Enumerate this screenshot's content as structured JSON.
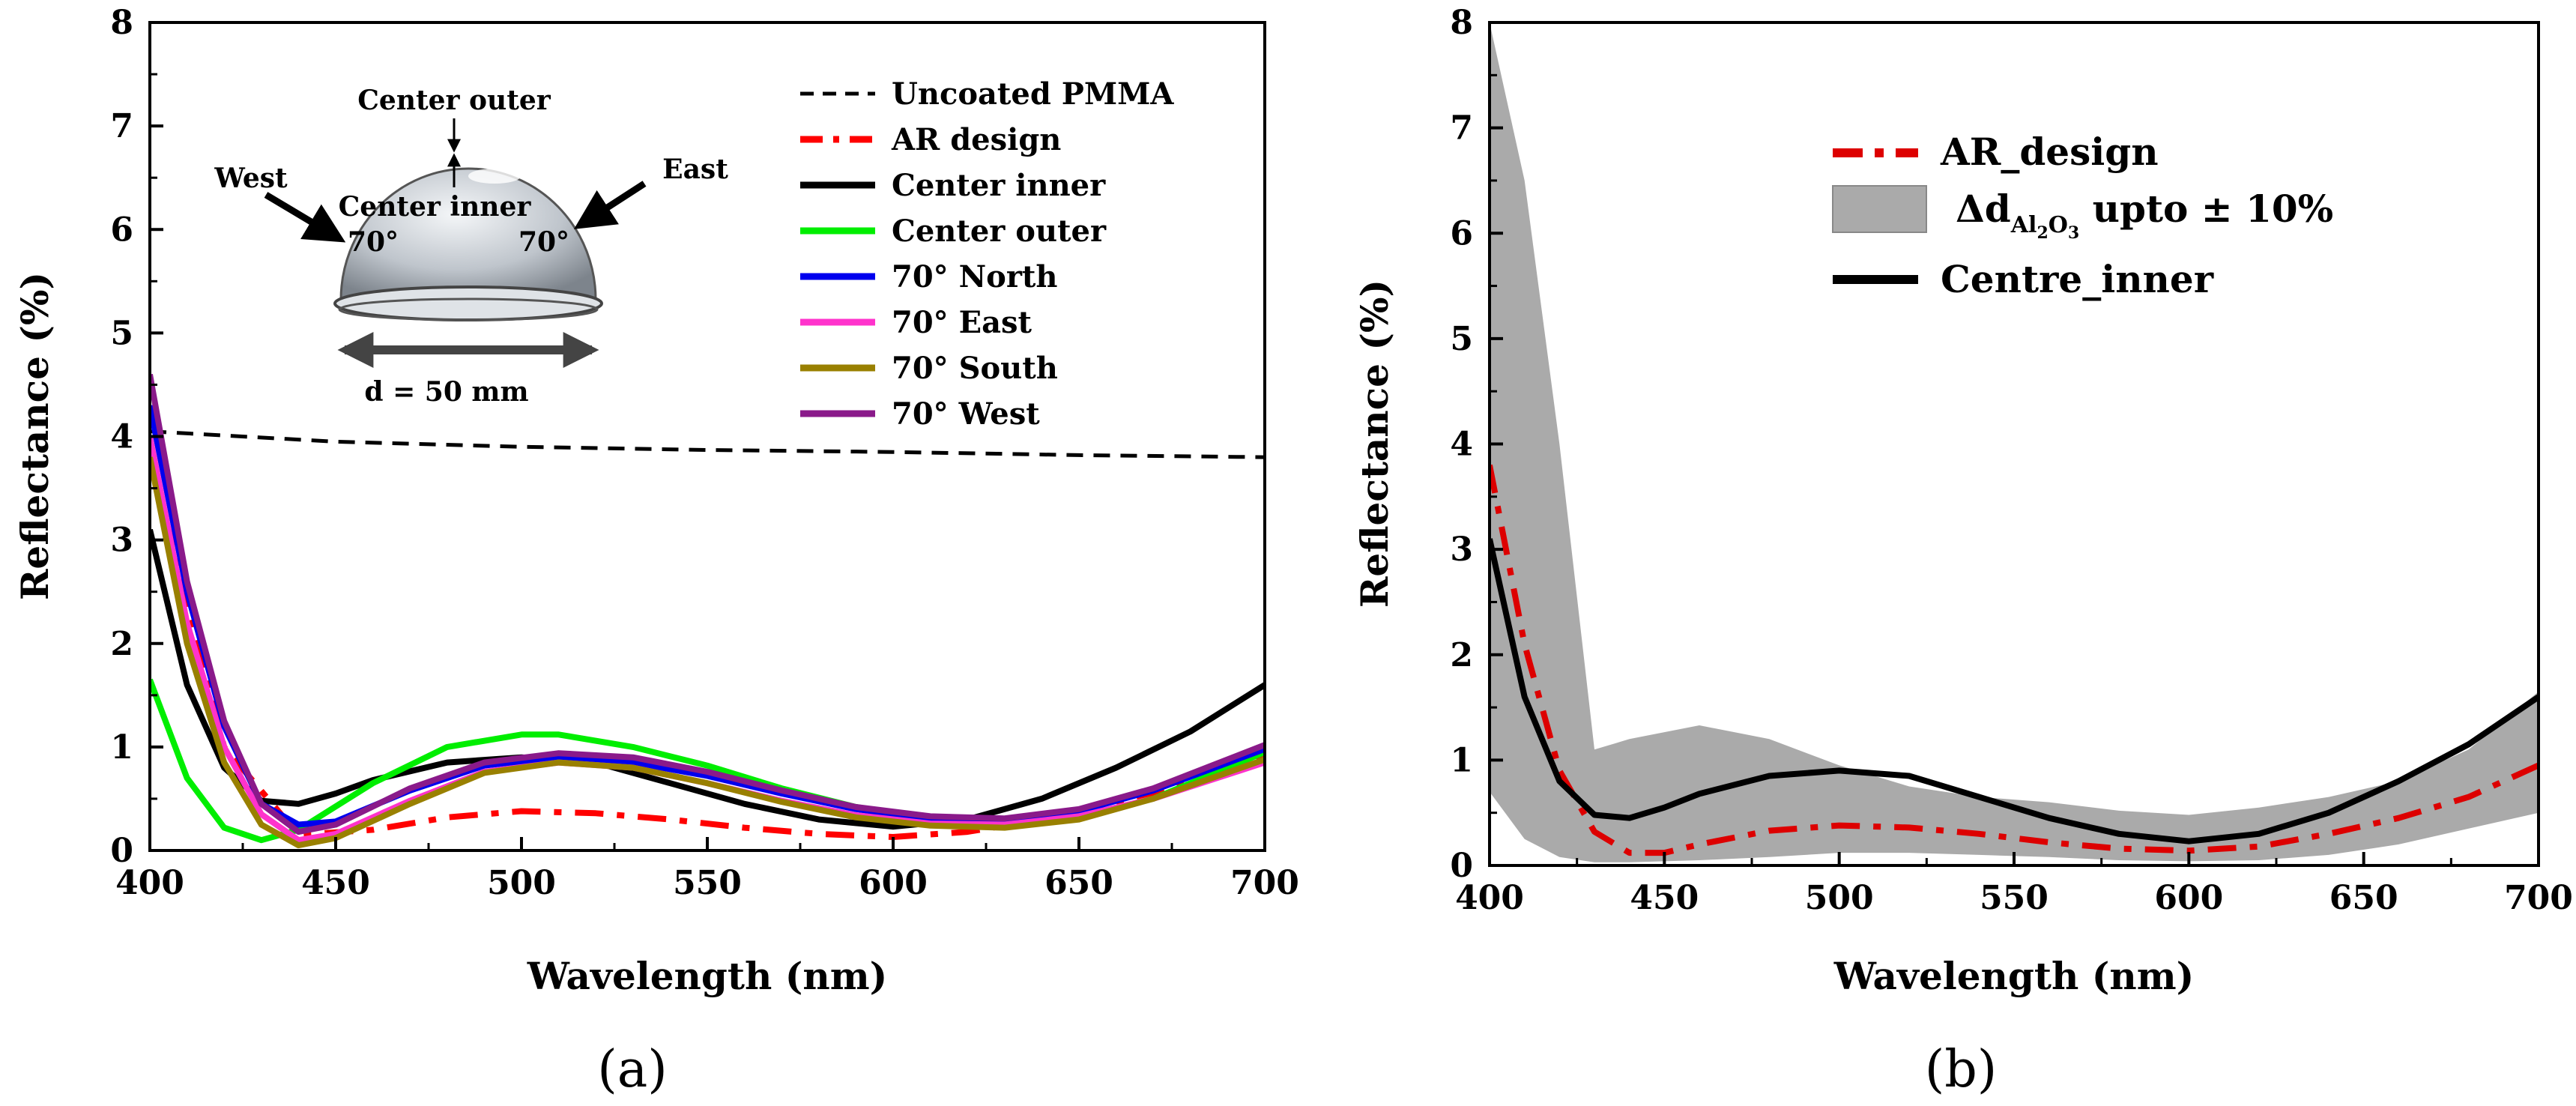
{
  "chart_data": [
    {
      "type": "line",
      "panel_label": "(a)",
      "xlabel": "Wavelength (nm)",
      "ylabel": "Reflectance (%)",
      "xlim": [
        400,
        700
      ],
      "ylim": [
        0,
        8
      ],
      "xticks": [
        "400",
        "450",
        "500",
        "550",
        "600",
        "650",
        "700"
      ],
      "yticks": [
        "0",
        "1",
        "2",
        "3",
        "4",
        "5",
        "6",
        "7",
        "8"
      ],
      "legend_position": "top-right",
      "series": [
        {
          "name": "Uncoated PMMA",
          "color": "#000000",
          "style": "dashed",
          "x": [
            400,
            450,
            500,
            550,
            600,
            650,
            700
          ],
          "y": [
            4.05,
            3.95,
            3.9,
            3.87,
            3.85,
            3.82,
            3.8
          ]
        },
        {
          "name": "AR design",
          "color": "#ff0000",
          "style": "dashdot",
          "x": [
            400,
            420,
            440,
            460,
            480,
            500,
            520,
            540,
            560,
            580,
            600,
            620,
            640,
            660,
            680,
            700
          ],
          "y": [
            3.8,
            1.0,
            0.15,
            0.2,
            0.32,
            0.38,
            0.36,
            0.3,
            0.22,
            0.16,
            0.13,
            0.18,
            0.3,
            0.45,
            0.65,
            0.9
          ]
        },
        {
          "name": "Center inner",
          "color": "#000000",
          "style": "solid",
          "x": [
            400,
            410,
            420,
            430,
            440,
            450,
            460,
            480,
            500,
            520,
            540,
            560,
            580,
            600,
            620,
            640,
            660,
            680,
            700
          ],
          "y": [
            3.1,
            1.6,
            0.8,
            0.48,
            0.45,
            0.55,
            0.68,
            0.85,
            0.9,
            0.85,
            0.65,
            0.45,
            0.3,
            0.23,
            0.3,
            0.5,
            0.8,
            1.15,
            1.6
          ]
        },
        {
          "name": "Center outer",
          "color": "#00ee00",
          "style": "solid",
          "x": [
            400,
            410,
            420,
            430,
            440,
            460,
            480,
            500,
            510,
            530,
            550,
            570,
            590,
            610,
            630,
            650,
            670,
            700
          ],
          "y": [
            1.65,
            0.7,
            0.22,
            0.1,
            0.2,
            0.65,
            1.0,
            1.12,
            1.12,
            1.0,
            0.82,
            0.6,
            0.42,
            0.3,
            0.25,
            0.32,
            0.5,
            0.95
          ]
        },
        {
          "name": "70° North",
          "color": "#0000ee",
          "style": "solid",
          "x": [
            400,
            410,
            420,
            430,
            440,
            450,
            470,
            490,
            510,
            530,
            550,
            570,
            590,
            610,
            630,
            650,
            670,
            700
          ],
          "y": [
            4.3,
            2.5,
            1.2,
            0.45,
            0.25,
            0.28,
            0.58,
            0.82,
            0.9,
            0.85,
            0.72,
            0.55,
            0.4,
            0.3,
            0.28,
            0.38,
            0.58,
            0.98
          ]
        },
        {
          "name": "70° East",
          "color": "#ff33cc",
          "style": "solid",
          "x": [
            400,
            410,
            420,
            430,
            440,
            450,
            470,
            490,
            510,
            530,
            550,
            570,
            590,
            610,
            630,
            650,
            670,
            700
          ],
          "y": [
            4.0,
            2.2,
            1.0,
            0.35,
            0.1,
            0.16,
            0.48,
            0.76,
            0.85,
            0.8,
            0.65,
            0.48,
            0.34,
            0.26,
            0.25,
            0.33,
            0.5,
            0.85
          ]
        },
        {
          "name": "70° South",
          "color": "#998000",
          "style": "solid",
          "x": [
            400,
            410,
            420,
            430,
            440,
            450,
            470,
            490,
            510,
            530,
            550,
            570,
            590,
            610,
            630,
            650,
            670,
            700
          ],
          "y": [
            3.8,
            2.0,
            0.85,
            0.25,
            0.05,
            0.12,
            0.45,
            0.75,
            0.85,
            0.8,
            0.65,
            0.47,
            0.32,
            0.24,
            0.22,
            0.3,
            0.5,
            0.88
          ]
        },
        {
          "name": "70° West",
          "color": "#8a1a8a",
          "style": "solid",
          "x": [
            400,
            410,
            420,
            430,
            440,
            450,
            470,
            490,
            510,
            530,
            550,
            570,
            590,
            610,
            630,
            650,
            670,
            700
          ],
          "y": [
            4.6,
            2.6,
            1.25,
            0.45,
            0.18,
            0.25,
            0.6,
            0.85,
            0.94,
            0.9,
            0.76,
            0.58,
            0.42,
            0.33,
            0.31,
            0.4,
            0.6,
            1.02
          ]
        }
      ],
      "inset": {
        "labels": {
          "center_outer": "Center outer",
          "center_inner": "Center inner",
          "west": "West",
          "east": "East",
          "angle_left": "70°",
          "angle_right": "70°",
          "diameter": "d = 50 mm"
        }
      }
    },
    {
      "type": "line",
      "panel_label": "(b)",
      "xlabel": "Wavelength (nm)",
      "ylabel": "Reflectance (%)",
      "xlim": [
        400,
        700
      ],
      "ylim": [
        0,
        8
      ],
      "xticks": [
        "400",
        "450",
        "500",
        "550",
        "600",
        "650",
        "700"
      ],
      "yticks": [
        "0",
        "1",
        "2",
        "3",
        "4",
        "5",
        "6",
        "7",
        "8"
      ],
      "legend_position": "top-center",
      "band": {
        "label_prefix": "Δd",
        "label_sub": "Al",
        "label_sub2": "2",
        "label_sub3": "O",
        "label_sub4": "3",
        "label_suffix": " upto ± 10%",
        "color": "#aaaaaa",
        "x": [
          400,
          410,
          420,
          430,
          440,
          460,
          480,
          500,
          520,
          540,
          560,
          580,
          600,
          620,
          640,
          660,
          680,
          700
        ],
        "upper": [
          8.0,
          6.5,
          4.0,
          1.1,
          1.2,
          1.33,
          1.2,
          0.95,
          0.75,
          0.65,
          0.6,
          0.52,
          0.48,
          0.55,
          0.65,
          0.8,
          1.1,
          1.65
        ],
        "lower": [
          0.7,
          0.25,
          0.08,
          0.03,
          0.03,
          0.05,
          0.08,
          0.12,
          0.12,
          0.1,
          0.08,
          0.05,
          0.04,
          0.05,
          0.1,
          0.2,
          0.35,
          0.5
        ]
      },
      "series": [
        {
          "name": "AR_design",
          "color": "#dd0000",
          "style": "dashdot",
          "x": [
            400,
            410,
            420,
            430,
            440,
            450,
            460,
            480,
            500,
            520,
            540,
            560,
            580,
            600,
            620,
            640,
            660,
            680,
            700
          ],
          "y": [
            3.8,
            2.1,
            0.9,
            0.32,
            0.12,
            0.12,
            0.2,
            0.33,
            0.38,
            0.36,
            0.3,
            0.22,
            0.16,
            0.14,
            0.18,
            0.3,
            0.45,
            0.65,
            0.95
          ]
        },
        {
          "name": "Centre_inner",
          "color": "#000000",
          "style": "solid",
          "x": [
            400,
            410,
            420,
            430,
            440,
            450,
            460,
            480,
            500,
            520,
            540,
            560,
            580,
            600,
            620,
            640,
            660,
            680,
            700
          ],
          "y": [
            3.1,
            1.6,
            0.8,
            0.48,
            0.45,
            0.55,
            0.68,
            0.85,
            0.9,
            0.85,
            0.65,
            0.45,
            0.3,
            0.23,
            0.3,
            0.5,
            0.8,
            1.15,
            1.6
          ]
        }
      ]
    }
  ]
}
